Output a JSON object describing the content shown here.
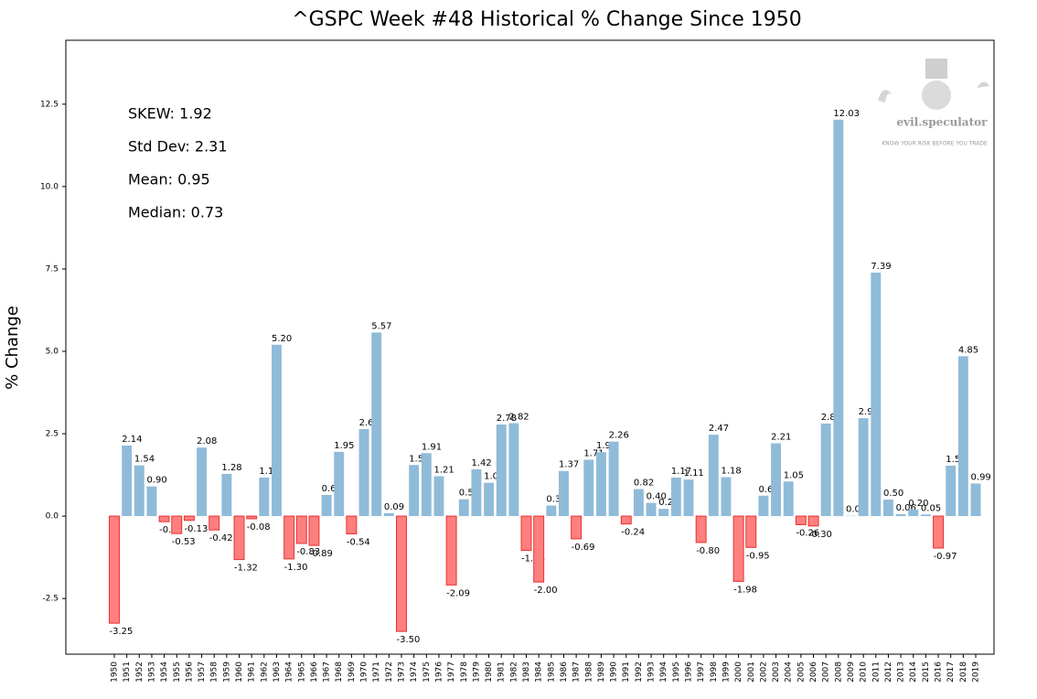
{
  "chart_data": {
    "type": "bar",
    "title": "^GSPC Week #48 Historical % Change Since 1950",
    "ylabel": "% Change",
    "annotations": [
      "SKEW: 1.92",
      "Std Dev: 2.31",
      "Mean: 0.95",
      "Median: 0.73"
    ],
    "watermark": [
      "evil.speculator",
      "KNOW YOUR RISK BEFORE YOU TRADE"
    ],
    "positive_color": "#8fbbd9",
    "negative_color": "#ff7f7f",
    "negative_edge_color": "#e83030",
    "categories": [
      "1950",
      "1951",
      "1952",
      "1953",
      "1954",
      "1955",
      "1956",
      "1957",
      "1958",
      "1959",
      "1960",
      "1961",
      "1962",
      "1963",
      "1964",
      "1965",
      "1966",
      "1967",
      "1968",
      "1969",
      "1970",
      "1971",
      "1972",
      "1973",
      "1974",
      "1975",
      "1976",
      "1977",
      "1978",
      "1979",
      "1980",
      "1981",
      "1982",
      "1983",
      "1984",
      "1985",
      "1986",
      "1987",
      "1988",
      "1989",
      "1990",
      "1991",
      "1992",
      "1993",
      "1994",
      "1995",
      "1996",
      "1997",
      "1998",
      "1999",
      "2000",
      "2001",
      "2002",
      "2003",
      "2004",
      "2005",
      "2006",
      "2007",
      "2008",
      "2009",
      "2010",
      "2011",
      "2012",
      "2013",
      "2014",
      "2015",
      "2016",
      "2017",
      "2018",
      "2019"
    ],
    "values": [
      -3.25,
      2.14,
      1.54,
      0.9,
      -0.17,
      -0.53,
      -0.13,
      2.08,
      -0.42,
      1.28,
      -1.32,
      -0.08,
      1.17,
      5.2,
      -1.3,
      -0.83,
      -0.89,
      0.64,
      1.95,
      -0.54,
      2.64,
      5.57,
      0.09,
      -3.5,
      1.55,
      1.91,
      1.21,
      -2.09,
      0.51,
      1.42,
      1.01,
      2.78,
      2.82,
      -1.04,
      -2.0,
      0.32,
      1.37,
      -0.69,
      1.71,
      1.94,
      2.26,
      -0.24,
      0.82,
      0.4,
      0.22,
      1.17,
      1.11,
      -0.8,
      2.47,
      1.18,
      -1.98,
      -0.95,
      0.62,
      2.21,
      1.05,
      -0.26,
      -0.3,
      2.81,
      12.03,
      0.01,
      2.97,
      7.39,
      0.5,
      0.06,
      0.2,
      0.05,
      -0.97,
      1.53,
      4.85,
      0.99
    ],
    "value_labels": [
      "-3.25",
      "2.14",
      "1.54",
      "0.90",
      "-0.17",
      "-0.53",
      "-0.13",
      "2.08",
      "-0.42",
      "1.28",
      "-1.32",
      "-0.08",
      "1.17",
      "5.20",
      "-1.30",
      "-0.83",
      "-0.89",
      "0.64",
      "1.95",
      "-0.54",
      "2.64",
      "5.57",
      "0.09",
      "-3.50",
      "1.55",
      "1.91",
      "1.21",
      "-2.09",
      "0.51",
      "1.42",
      "1.01",
      "2.78",
      "2.82",
      "-1.04",
      "-2.00",
      "0.32",
      "1.37",
      "-0.69",
      "1.71",
      "1.94",
      "2.26",
      "-0.24",
      "0.82",
      "0.40",
      "0.22",
      "1.17",
      "1.11",
      "-0.80",
      "2.47",
      "1.18",
      "-1.98",
      "-0.95",
      "0.62",
      "2.21",
      "1.05",
      "-0.26",
      "-0.30",
      "2.81",
      "12.03",
      "0.01",
      "2.97",
      "7.39",
      "0.50",
      "0.06",
      "0.20",
      "0.05",
      "-0.97",
      "1.53",
      "4.85",
      "0.99"
    ],
    "ylim": [
      -4.19,
      14.44
    ],
    "yticks": [
      -2.5,
      {
        "value": 0,
        "label": "0.0"
      },
      2.5,
      {
        "value": 5,
        "label": "5.0"
      },
      7.5,
      {
        "value": 10,
        "label": "10.0"
      },
      12.5
    ]
  }
}
